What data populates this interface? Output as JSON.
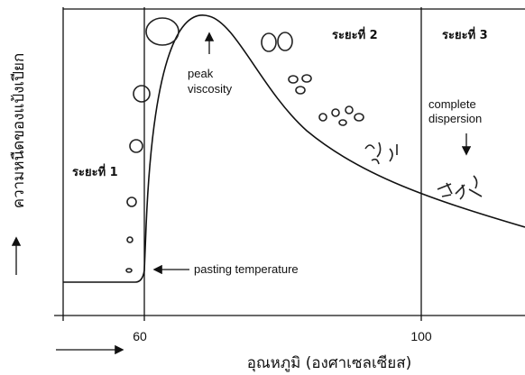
{
  "axis": {
    "y_label": "ความหนืดของแป้งเปียก",
    "x_label": "อุณหภูมิ (องศาเซลเซียส)",
    "ticks": [
      "60",
      "100"
    ]
  },
  "annotations": {
    "stage_1": "ระยะที่ 1",
    "stage_2": "ระยะที่ 2",
    "stage_3": "ระยะที่ 3",
    "peak": [
      "peak",
      "viscosity"
    ],
    "pasting": "pasting temperature",
    "dispersion": [
      "complete",
      "dispersion"
    ]
  }
}
